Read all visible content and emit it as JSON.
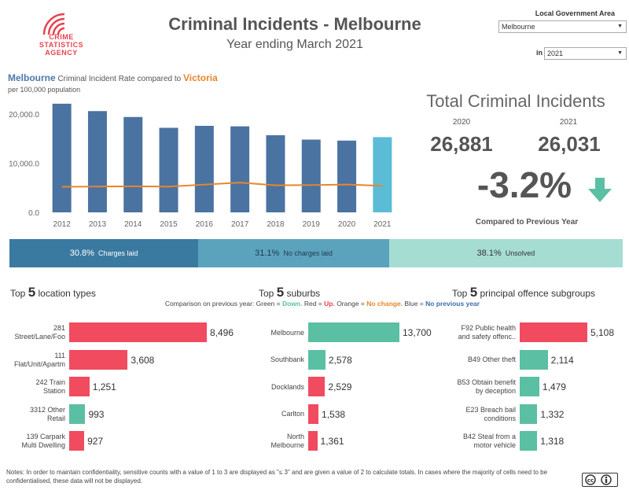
{
  "header": {
    "logo_lines": [
      "CRIME",
      "STATISTICS",
      "AGENCY"
    ],
    "title": "Criminal Incidents - Melbourne",
    "subtitle": "Year ending March 2021"
  },
  "filters": {
    "lga_label": "Local Government Area",
    "lga_value": "Melbourne",
    "year_prefix": "in",
    "year_value": "2021"
  },
  "rate_chart": {
    "heading_mel": "Melbourne",
    "heading_mid": " Criminal Incident Rate compared to ",
    "heading_vic": "Victoria",
    "subheading": "per 100,000 population"
  },
  "chart_data": {
    "type": "bar",
    "categories": [
      "2012",
      "2013",
      "2014",
      "2015",
      "2016",
      "2017",
      "2018",
      "2019",
      "2020",
      "2021"
    ],
    "series": [
      {
        "name": "Melbourne",
        "kind": "bar",
        "values": [
          22100,
          20600,
          19400,
          17200,
          17600,
          17500,
          15700,
          14800,
          14600,
          15300
        ]
      },
      {
        "name": "Victoria",
        "kind": "line",
        "values": [
          5200,
          5250,
          5300,
          5250,
          5650,
          6050,
          5500,
          5550,
          5650,
          5400
        ]
      }
    ],
    "ylim": [
      0,
      24000
    ],
    "yticks": [
      0,
      10000,
      20000
    ],
    "ytick_labels": [
      "0.0",
      "10,000.0",
      "20,000.0"
    ],
    "colors": {
      "bar": "#4a73a2",
      "bar_selected": "#5bbcd6",
      "line": "#e8862a"
    },
    "grid": false
  },
  "totals": {
    "title": "Total Criminal Incidents",
    "prev_year": "2020",
    "curr_year": "2021",
    "prev_value": "26,881",
    "curr_value": "26,031",
    "change": "-3.2%",
    "change_icon": "arrow-down-icon",
    "compared_label": "Compared to Previous Year"
  },
  "outcomes": [
    {
      "pct": "30.8%",
      "label": "Charges laid",
      "share": 30.8,
      "color": "#3b7aa0",
      "text_color": "#ffffff"
    },
    {
      "pct": "31.1%",
      "label": "No charges laid",
      "share": 31.1,
      "color": "#5ba3bd",
      "text_color": "#1f3b4d"
    },
    {
      "pct": "38.1%",
      "label": "Unsolved",
      "share": 38.1,
      "color": "#a6ddd3",
      "text_color": "#333333"
    }
  ],
  "comparison_legend": {
    "prefix": "Comparison on previous year: Green = ",
    "green": "Down.",
    "red_prefix": " Red = ",
    "red": "Up.",
    "orange_prefix": " Orange = ",
    "orange": "No change.",
    "blue_prefix": " Blue = ",
    "blue": "No previous year"
  },
  "location_types": {
    "title_pre": "Top ",
    "title_n": "5",
    "title_post": " location types",
    "items": [
      {
        "label": "281\nStreet/Lane/Foo",
        "value": 8496,
        "display": "8,496",
        "color": "#f04b5f"
      },
      {
        "label": "111\nFlat/Unit/Apartm",
        "value": 3608,
        "display": "3,608",
        "color": "#f04b5f"
      },
      {
        "label": "242 Train\nStation",
        "value": 1251,
        "display": "1,251",
        "color": "#f04b5f"
      },
      {
        "label": "3312 Other\nRetail",
        "value": 993,
        "display": "993",
        "color": "#5bbfa3"
      },
      {
        "label": "139 Carpark\nMulti Dwelling",
        "value": 927,
        "display": "927",
        "color": "#f04b5f"
      }
    ]
  },
  "suburbs": {
    "title_pre": "Top ",
    "title_n": "5",
    "title_post": " suburbs",
    "items": [
      {
        "label": "Melbourne",
        "value": 13700,
        "display": "13,700",
        "color": "#5bbfa3"
      },
      {
        "label": "Southbank",
        "value": 2578,
        "display": "2,578",
        "color": "#5bbfa3"
      },
      {
        "label": "Docklands",
        "value": 2529,
        "display": "2,529",
        "color": "#f04b5f"
      },
      {
        "label": "Carlton",
        "value": 1538,
        "display": "1,538",
        "color": "#f04b5f"
      },
      {
        "label": "North\nMelbourne",
        "value": 1361,
        "display": "1,361",
        "color": "#f04b5f"
      }
    ]
  },
  "offences": {
    "title_pre": "Top ",
    "title_n": "5",
    "title_post": " principal offence subgroups",
    "items": [
      {
        "label": "F92 Public health\nand safety offenc..",
        "value": 5108,
        "display": "5,108",
        "color": "#f04b5f"
      },
      {
        "label": "B49 Other theft",
        "value": 2114,
        "display": "2,114",
        "color": "#5bbfa3"
      },
      {
        "label": "B53 Obtain benefit\nby deception",
        "value": 1479,
        "display": "1,479",
        "color": "#5bbfa3"
      },
      {
        "label": "E23 Breach bail\nconditions",
        "value": 1332,
        "display": "1,332",
        "color": "#5bbfa3"
      },
      {
        "label": "B42 Steal from a\nmotor vehicle",
        "value": 1318,
        "display": "1,318",
        "color": "#5bbfa3"
      }
    ]
  },
  "notes": "Notes: In order to maintain confidentiality, sensitive counts with a value of 1 to 3  are displayed as \"≤ 3\" and are given a value of 2 to calculate totals. In cases where the majority of cells need to be confidentialised, these data will not be displayed.",
  "license": {
    "icon": "creative-commons-by-icon"
  }
}
